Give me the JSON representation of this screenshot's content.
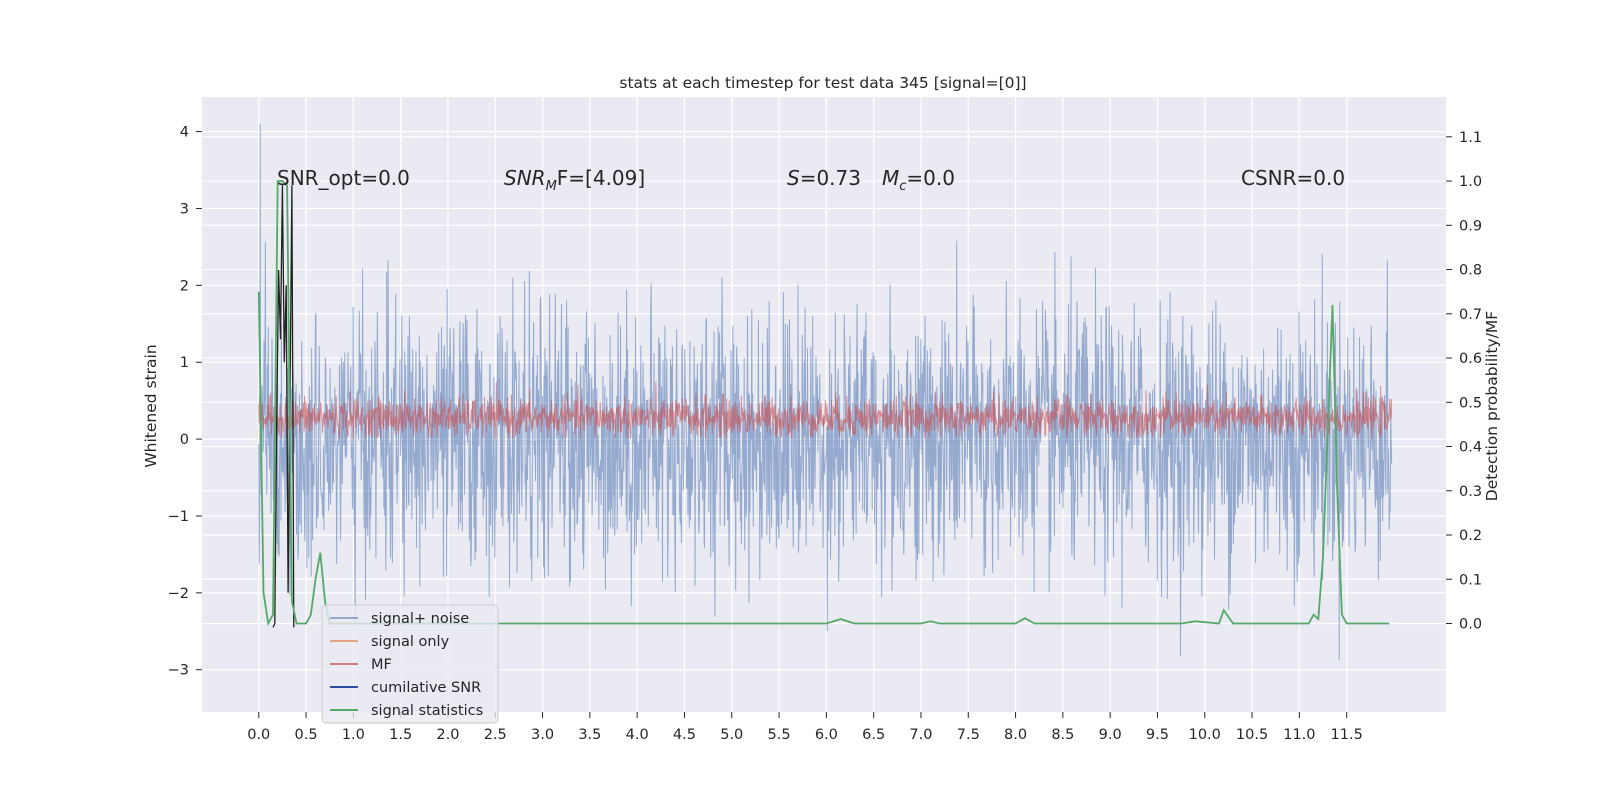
{
  "chart_data": {
    "type": "line",
    "title": "stats at each timestep for test data 345 [signal=[0]]",
    "ylabel": "Whitened strain",
    "ylabel_right": "Detection probability/MF",
    "xlim": [
      -0.6,
      12.55
    ],
    "ylim": [
      -3.55,
      4.45
    ],
    "ylim_right": [
      -0.2,
      1.19
    ],
    "x_ticks": [
      "0.0",
      "0.5",
      "1.0",
      "1.5",
      "2.0",
      "2.5",
      "3.0",
      "3.5",
      "4.0",
      "4.5",
      "5.0",
      "5.5",
      "6.0",
      "6.5",
      "7.0",
      "7.5",
      "8.0",
      "8.5",
      "9.0",
      "9.5",
      "10.0",
      "10.5",
      "11.0",
      "11.5"
    ],
    "y_ticks": [
      "−3",
      "−2",
      "−1",
      "0",
      "1",
      "2",
      "3",
      "4"
    ],
    "y_ticks_right": [
      "0.0",
      "0.1",
      "0.2",
      "0.3",
      "0.4",
      "0.5",
      "0.6",
      "0.7",
      "0.8",
      "0.9",
      "1.0",
      "1.1"
    ],
    "grid": true,
    "legend_position": "lower-left",
    "annotations": [
      {
        "text": "SNR_opt=0.0",
        "x": 0.2,
        "y": 3.25
      },
      {
        "text_main": "SNR",
        "text_sub": "M",
        "text_rest": "F=[4.09]",
        "x": 2.6,
        "y": 3.25
      },
      {
        "text_main": "S",
        "text_rest": "=0.73",
        "x": 5.6,
        "y": 3.25
      },
      {
        "text_main": "M",
        "text_sub": "c",
        "text_rest": "=0.0",
        "x": 6.6,
        "y": 3.25
      },
      {
        "text": "CSNR=0.0",
        "x": 10.4,
        "y": 3.25
      }
    ],
    "series": [
      {
        "name": "signal+ noise",
        "color": "#4c72b0",
        "axis": "left",
        "description": "noise band roughly ±1.5, spikes to 4.1 near x=0.0"
      },
      {
        "name": "signal only",
        "color": "#dd8452",
        "axis": "left",
        "values_note": "flat at 0"
      },
      {
        "name": "MF",
        "color": "#c44e52",
        "axis": "left",
        "description": "band 0 to ~0.6, peaks ~0.95"
      },
      {
        "name": "cumilative SNR",
        "color": "#1f3a7a",
        "axis": "left",
        "values_note": "not visible, constant"
      },
      {
        "name": "signal statistics",
        "color": "#55a868",
        "axis": "right",
        "x": [
          0.0,
          0.05,
          0.1,
          0.15,
          0.2,
          0.25,
          0.3,
          0.35,
          0.4,
          0.45,
          0.5,
          0.55,
          0.6,
          0.65,
          0.7,
          0.75,
          0.8,
          0.9,
          1.0,
          1.5,
          2.0,
          3.0,
          4.0,
          5.0,
          6.0,
          6.15,
          6.3,
          7.0,
          7.1,
          7.2,
          8.0,
          8.1,
          8.2,
          9.0,
          9.75,
          9.9,
          10.15,
          10.2,
          10.3,
          11.0,
          11.1,
          11.15,
          11.2,
          11.25,
          11.35,
          11.4,
          11.45,
          11.5,
          11.6,
          11.95
        ],
        "values": [
          0.75,
          0.07,
          0.0,
          0.02,
          1.0,
          1.0,
          0.99,
          0.05,
          0.0,
          0.0,
          0.0,
          0.02,
          0.1,
          0.16,
          0.05,
          0.0,
          0.0,
          0.0,
          0.0,
          0.0,
          0.0,
          0.0,
          0.0,
          0.0,
          0.0,
          0.01,
          0.0,
          0.0,
          0.005,
          0.0,
          0.0,
          0.012,
          0.0,
          0.0,
          0.0,
          0.005,
          0.0,
          0.03,
          0.0,
          0.0,
          0.0,
          0.02,
          0.01,
          0.15,
          0.72,
          0.3,
          0.02,
          0.0,
          0.0,
          0.0
        ]
      }
    ],
    "black_line": {
      "x": [
        0.15,
        0.17,
        0.19,
        0.21,
        0.23,
        0.25,
        0.27,
        0.29,
        0.31,
        0.33,
        0.35,
        0.37
      ],
      "values": [
        -2.45,
        -2.4,
        0.2,
        2.2,
        1.3,
        3.3,
        1.0,
        2.0,
        -2.0,
        0.5,
        3.3,
        -2.45
      ]
    }
  }
}
